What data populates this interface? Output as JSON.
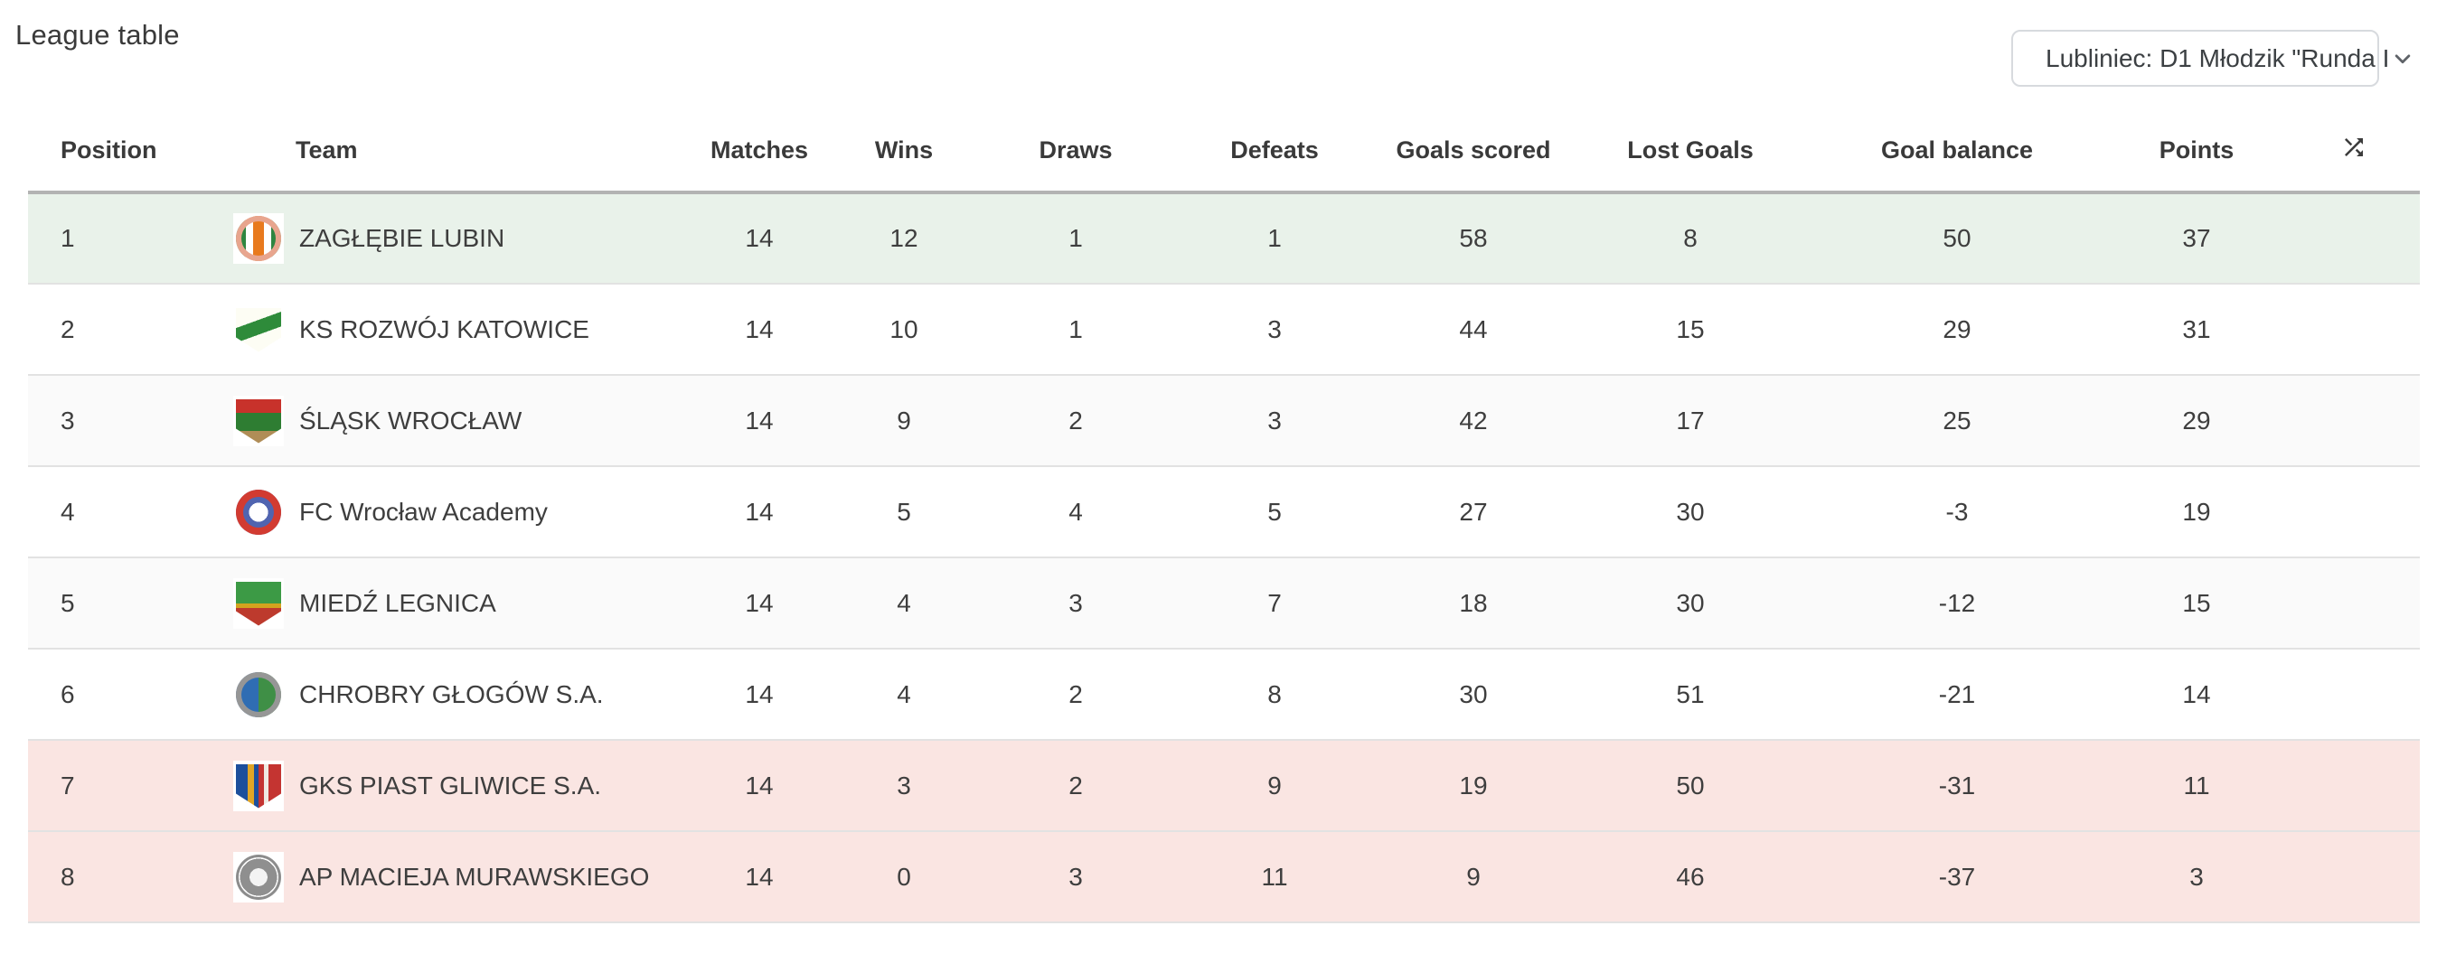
{
  "page": {
    "title": "League table"
  },
  "filter": {
    "value": "Lubliniec: D1 Młodzik \"Runda I"
  },
  "colors": {
    "promotion_bg": "#e9f2ea",
    "relegation_bg": "#fae5e2",
    "stripe_bg": "#fafafa",
    "header_rule": "#b3b3b3",
    "row_border": "#e2e2e2",
    "accent_text": "#3a3a3a"
  },
  "table": {
    "headers": {
      "position": "Position",
      "team": "Team",
      "matches": "Matches",
      "wins": "Wins",
      "draws": "Draws",
      "defeats": "Defeats",
      "goals_scored": "Goals scored",
      "lost_goals": "Lost Goals",
      "goal_balance": "Goal balance",
      "points": "Points",
      "shuffle_icon": "shuffle-icon"
    },
    "rows": [
      {
        "position": "1",
        "team": "ZAGŁĘBIE LUBIN",
        "matches": "14",
        "wins": "12",
        "draws": "1",
        "defeats": "1",
        "goals_scored": "58",
        "lost_goals": "8",
        "goal_balance": "50",
        "points": "37",
        "status": "promotion",
        "logo": {
          "shape": "circle",
          "ring": "#e8a58e",
          "ring_w": 6,
          "bg": "linear-gradient(90deg,#2e8540 0 22%,#ffffff 22% 38%,#e87a1e 38% 62%,#ffffff 62% 78%,#2e8540 78% 100%)"
        }
      },
      {
        "position": "2",
        "team": "KS ROZWÓJ KATOWICE",
        "matches": "14",
        "wins": "10",
        "draws": "1",
        "defeats": "3",
        "goals_scored": "44",
        "lost_goals": "15",
        "goal_balance": "29",
        "points": "31",
        "status": "none",
        "logo": {
          "shape": "shield",
          "bg": "linear-gradient(160deg,#fdfdf4 0 34%,#2e8b3a 34% 58%,#fdfdf4 58% 100%)"
        }
      },
      {
        "position": "3",
        "team": "ŚLĄSK WROCŁAW",
        "matches": "14",
        "wins": "9",
        "draws": "2",
        "defeats": "3",
        "goals_scored": "42",
        "lost_goals": "17",
        "goal_balance": "25",
        "points": "29",
        "status": "stripe",
        "logo": {
          "shape": "shield",
          "bg": "linear-gradient(180deg,#c8322b 0 32%,#2e7d32 32% 72%,#b08d57 72% 100%)"
        }
      },
      {
        "position": "4",
        "team": "FC Wrocław Academy",
        "matches": "14",
        "wins": "5",
        "draws": "4",
        "defeats": "5",
        "goals_scored": "27",
        "lost_goals": "30",
        "goal_balance": "-3",
        "points": "19",
        "status": "none",
        "logo": {
          "shape": "circle",
          "ring": "#d23b31",
          "ring_w": 8,
          "bg": "radial-gradient(circle,#ffffff 0 30%,#5064b0 30% 78%,#f2d24b 78%)"
        }
      },
      {
        "position": "5",
        "team": "MIEDŹ LEGNICA",
        "matches": "14",
        "wins": "4",
        "draws": "3",
        "defeats": "7",
        "goals_scored": "18",
        "lost_goals": "30",
        "goal_balance": "-12",
        "points": "15",
        "status": "stripe",
        "logo": {
          "shape": "shield",
          "bg": "linear-gradient(180deg,#3c9a45 0 50%,#d2a41e 50% 60%,#bd3a2d 60% 100%)"
        }
      },
      {
        "position": "6",
        "team": "CHROBRY GŁOGÓW S.A.",
        "matches": "14",
        "wins": "4",
        "draws": "2",
        "defeats": "8",
        "goals_scored": "30",
        "lost_goals": "51",
        "goal_balance": "-21",
        "points": "14",
        "status": "none",
        "logo": {
          "shape": "circle",
          "ring": "#969696",
          "ring_w": 6,
          "bg": "linear-gradient(90deg,#2f6db3 0 50%,#3f8f46 50%)"
        }
      },
      {
        "position": "7",
        "team": "GKS PIAST GLIWICE S.A.",
        "matches": "14",
        "wins": "3",
        "draws": "2",
        "defeats": "9",
        "goals_scored": "19",
        "lost_goals": "50",
        "goal_balance": "-31",
        "points": "11",
        "status": "relegation",
        "logo": {
          "shape": "shield",
          "bg": "linear-gradient(90deg,#1c4f9c 0 26%,#e0a526 26% 40%,#1c4f9c 40% 50%,#c43431 50% 62%,#efeae2 62% 72%,#c43431 72%)"
        }
      },
      {
        "position": "8",
        "team": "AP MACIEJA MURAWSKIEGO",
        "matches": "14",
        "wins": "0",
        "draws": "3",
        "defeats": "11",
        "goals_scored": "9",
        "lost_goals": "46",
        "goal_balance": "-37",
        "points": "3",
        "status": "relegation",
        "logo": {
          "shape": "circle",
          "ring": "#8c8c8c",
          "ring_w": 3,
          "bg": "radial-gradient(circle,#f3f3f3 0 28%,#8f8f8f 28% 58%,#ffffff 58%)"
        }
      }
    ]
  }
}
